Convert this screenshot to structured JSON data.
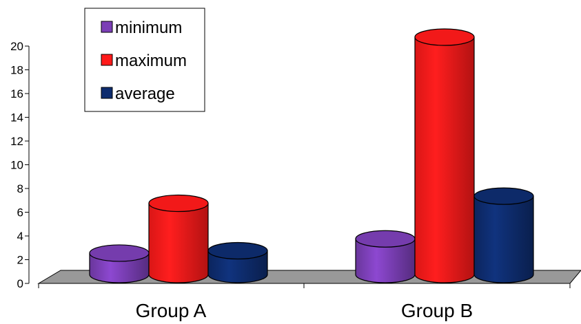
{
  "chart_data": {
    "type": "bar",
    "style": "3d-cylinder",
    "categories": [
      "Group A",
      "Group B"
    ],
    "series": [
      {
        "name": "minimum",
        "values": [
          1.8,
          3.0
        ],
        "color": "#7B3FB6"
      },
      {
        "name": "maximum",
        "values": [
          6.0,
          20.0
        ],
        "color": "#FF1A1A"
      },
      {
        "name": "average",
        "values": [
          2.0,
          6.6
        ],
        "color": "#0E2C6E"
      }
    ],
    "title": "",
    "xlabel": "",
    "ylabel": "",
    "ylim": [
      0,
      20
    ],
    "yticks": [
      "0",
      "2",
      "4",
      "6",
      "8",
      "10",
      "12",
      "14",
      "16",
      "18",
      "20"
    ],
    "grid": false,
    "legend_position": "top-left",
    "floor_color": "#999999"
  }
}
